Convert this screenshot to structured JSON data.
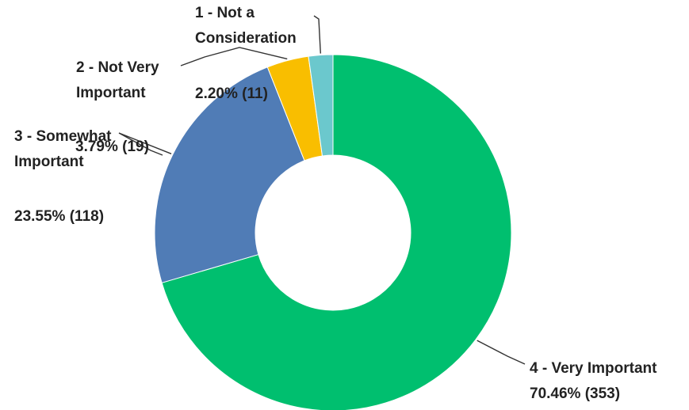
{
  "chart_data": {
    "type": "pie",
    "style": "donut",
    "title": "",
    "start_angle_deg": 0,
    "direction": "clockwise",
    "slices": [
      {
        "name": "4 - Very Important",
        "percent_label": "70.46% (353)",
        "value": 70.46,
        "count": 353,
        "color": "#00BF6F"
      },
      {
        "name": "3 - Somewhat Important",
        "percent_label": "23.55% (118)",
        "value": 23.55,
        "count": 118,
        "color": "#507CB6"
      },
      {
        "name": "2 - Not Very Important",
        "percent_label": "3.79% (19)",
        "value": 3.79,
        "count": 19,
        "color": "#F9BE00"
      },
      {
        "name": "1 - Not a Consideration",
        "percent_label": "2.20% (11)",
        "value": 2.2,
        "count": 11,
        "color": "#6BC8CD"
      }
    ]
  }
}
